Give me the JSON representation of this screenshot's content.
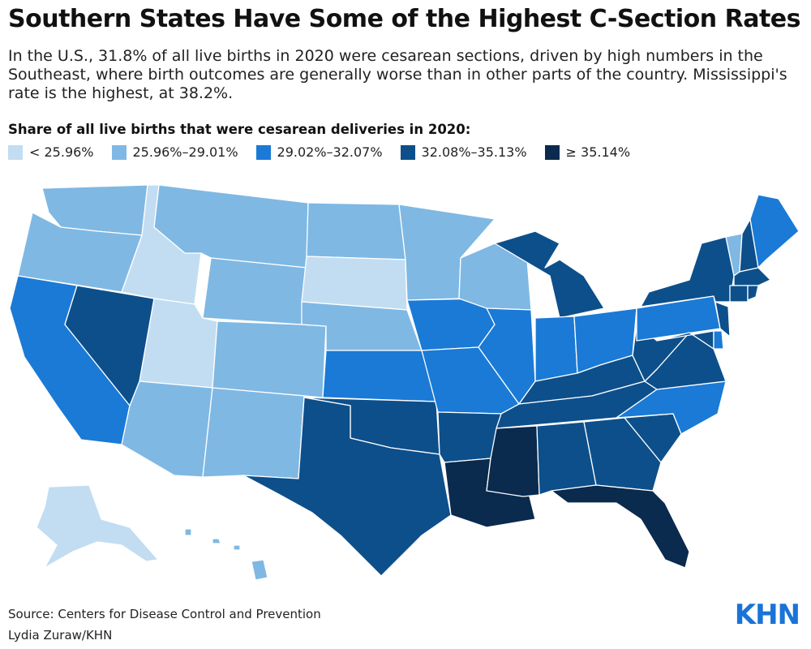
{
  "title": "Southern States Have Some of the Highest C-Section Rates",
  "subtitle": "In the U.S., 31.8% of all live births in 2020 were cesarean sections, driven by high numbers in the Southeast, where birth outcomes are generally worse than in other parts of the country. Mississippi's rate is the highest, at 38.2%.",
  "legend": {
    "title": "Share of all live births that were cesarean deliveries in 2020:",
    "items": [
      {
        "label": "< 25.96%",
        "color": "#c2ddf1"
      },
      {
        "label": "25.96%–29.01%",
        "color": "#7fb8e3"
      },
      {
        "label": "29.02%–32.07%",
        "color": "#1a7ad6"
      },
      {
        "label": "32.08%–35.13%",
        "color": "#0d4f8b"
      },
      {
        "label": "≥ 35.14%",
        "color": "#0a2a4e"
      }
    ]
  },
  "chart_data": {
    "type": "choropleth",
    "measure": "Share of all live births that were cesarean deliveries in 2020",
    "national_rate_pct": 31.8,
    "highest": {
      "state": "Mississippi",
      "rate_pct": 38.2
    },
    "classes": [
      "< 25.96%",
      "25.96%–29.01%",
      "29.02%–32.07%",
      "32.08%–35.13%",
      "≥ 35.14%"
    ],
    "states": [
      {
        "state": "Alaska",
        "class": 0
      },
      {
        "state": "Idaho",
        "class": 0
      },
      {
        "state": "Utah",
        "class": 0
      },
      {
        "state": "South Dakota",
        "class": 0
      },
      {
        "state": "Washington",
        "class": 1
      },
      {
        "state": "Oregon",
        "class": 1
      },
      {
        "state": "Montana",
        "class": 1
      },
      {
        "state": "Wyoming",
        "class": 1
      },
      {
        "state": "Colorado",
        "class": 1
      },
      {
        "state": "Arizona",
        "class": 1
      },
      {
        "state": "New Mexico",
        "class": 1
      },
      {
        "state": "North Dakota",
        "class": 1
      },
      {
        "state": "Nebraska",
        "class": 1
      },
      {
        "state": "Minnesota",
        "class": 1
      },
      {
        "state": "Wisconsin",
        "class": 1
      },
      {
        "state": "Vermont",
        "class": 1
      },
      {
        "state": "Hawaii",
        "class": 1
      },
      {
        "state": "California",
        "class": 2
      },
      {
        "state": "Kansas",
        "class": 2
      },
      {
        "state": "Iowa",
        "class": 2
      },
      {
        "state": "Missouri",
        "class": 2
      },
      {
        "state": "Illinois",
        "class": 2
      },
      {
        "state": "Indiana",
        "class": 2
      },
      {
        "state": "Ohio",
        "class": 2
      },
      {
        "state": "Pennsylvania",
        "class": 2
      },
      {
        "state": "North Carolina",
        "class": 2
      },
      {
        "state": "Maine",
        "class": 2
      },
      {
        "state": "Delaware",
        "class": 2
      },
      {
        "state": "Nevada",
        "class": 3
      },
      {
        "state": "Texas",
        "class": 3
      },
      {
        "state": "Oklahoma",
        "class": 3
      },
      {
        "state": "Arkansas",
        "class": 3
      },
      {
        "state": "Alabama",
        "class": 3
      },
      {
        "state": "Georgia",
        "class": 3
      },
      {
        "state": "South Carolina",
        "class": 3
      },
      {
        "state": "Tennessee",
        "class": 3
      },
      {
        "state": "Kentucky",
        "class": 3
      },
      {
        "state": "West Virginia",
        "class": 3
      },
      {
        "state": "Virginia",
        "class": 3
      },
      {
        "state": "Maryland",
        "class": 3
      },
      {
        "state": "Michigan",
        "class": 3
      },
      {
        "state": "New York",
        "class": 3
      },
      {
        "state": "New Jersey",
        "class": 3
      },
      {
        "state": "Connecticut",
        "class": 3
      },
      {
        "state": "Massachusetts",
        "class": 3
      },
      {
        "state": "New Hampshire",
        "class": 3
      },
      {
        "state": "Rhode Island",
        "class": 3
      },
      {
        "state": "Mississippi",
        "class": 4
      },
      {
        "state": "Louisiana",
        "class": 4
      },
      {
        "state": "Florida",
        "class": 4
      }
    ]
  },
  "footer": {
    "source": "Source: Centers for Disease Control and Prevention",
    "credit": "Lydia Zuraw/KHN",
    "logo": "KHN"
  }
}
